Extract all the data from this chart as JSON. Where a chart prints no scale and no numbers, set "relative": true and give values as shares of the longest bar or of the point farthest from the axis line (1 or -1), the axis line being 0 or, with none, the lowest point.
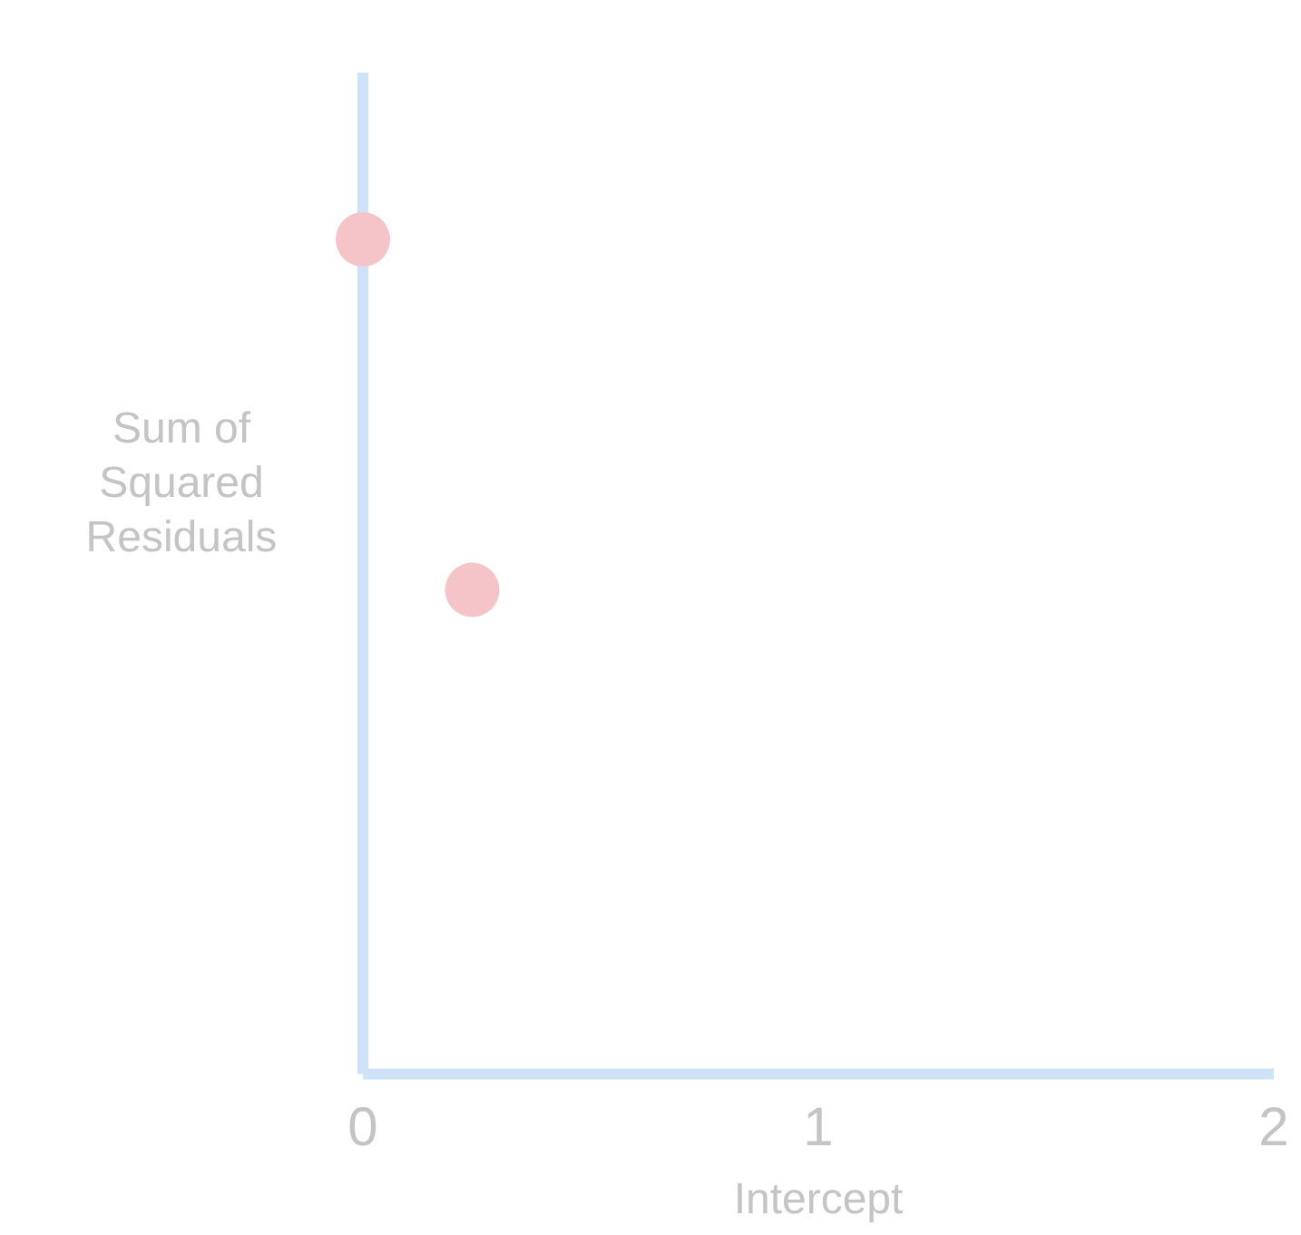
{
  "chart_data": {
    "type": "scatter",
    "xlabel": "Intercept",
    "ylabel": "Sum of\nSquared\nResiduals",
    "relative": true,
    "x": [
      0,
      0.24
    ],
    "series": [
      {
        "color": "#f4c4c8",
        "values": [
          1,
          0.58
        ]
      }
    ],
    "xlim": [
      0,
      2
    ],
    "xticks": [
      0,
      1,
      2
    ],
    "grid": false,
    "legend": false,
    "marker": "circle"
  }
}
